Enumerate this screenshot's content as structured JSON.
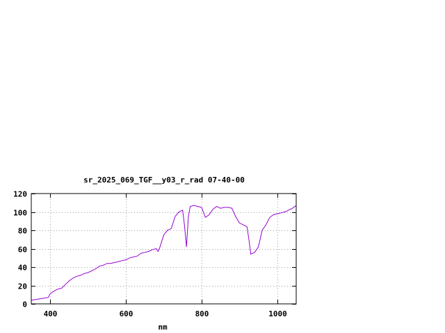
{
  "chart_data": {
    "type": "line",
    "title": "sr_2025_069_TGF__y03_r_rad 07-40-00",
    "xlabel": "nm",
    "ylabel": "",
    "xlim": [
      350,
      1050
    ],
    "ylim": [
      0,
      120
    ],
    "grid": true,
    "x_ticks": [
      400,
      600,
      800,
      1000
    ],
    "x_tick_labels": [
      "400",
      "600",
      "800",
      "1000"
    ],
    "y_ticks": [
      0,
      20,
      40,
      60,
      80,
      100,
      120
    ],
    "y_tick_labels": [
      "0",
      "20",
      "40",
      "60",
      "80",
      "100",
      "120"
    ],
    "series": [
      {
        "color": "#9400d3",
        "x": [
          350,
          365,
          380,
          395,
          400,
          410,
          420,
          430,
          440,
          450,
          460,
          470,
          480,
          490,
          500,
          510,
          520,
          530,
          540,
          550,
          560,
          570,
          580,
          590,
          600,
          610,
          620,
          630,
          640,
          650,
          660,
          670,
          680,
          685,
          690,
          700,
          710,
          720,
          730,
          740,
          750,
          755,
          760,
          765,
          770,
          780,
          790,
          800,
          810,
          820,
          830,
          840,
          850,
          860,
          870,
          880,
          890,
          900,
          910,
          920,
          925,
          930,
          935,
          940,
          950,
          960,
          970,
          980,
          990,
          1000,
          1010,
          1020,
          1030,
          1040,
          1050
        ],
        "y": [
          4,
          5,
          6,
          7,
          11,
          14,
          16,
          17,
          21,
          25,
          28,
          30,
          31,
          33,
          34,
          36,
          38,
          41,
          42,
          44,
          44,
          45,
          46,
          47,
          48,
          50,
          51,
          52,
          55,
          56,
          57,
          59,
          60,
          57,
          62,
          75,
          80,
          82,
          95,
          100,
          102,
          85,
          62,
          95,
          106,
          107,
          106,
          105,
          94,
          97,
          103,
          106,
          104,
          105,
          105,
          104,
          95,
          88,
          86,
          84,
          70,
          54,
          55,
          56,
          62,
          80,
          86,
          94,
          97,
          98,
          99,
          100,
          102,
          104,
          107
        ]
      }
    ]
  }
}
